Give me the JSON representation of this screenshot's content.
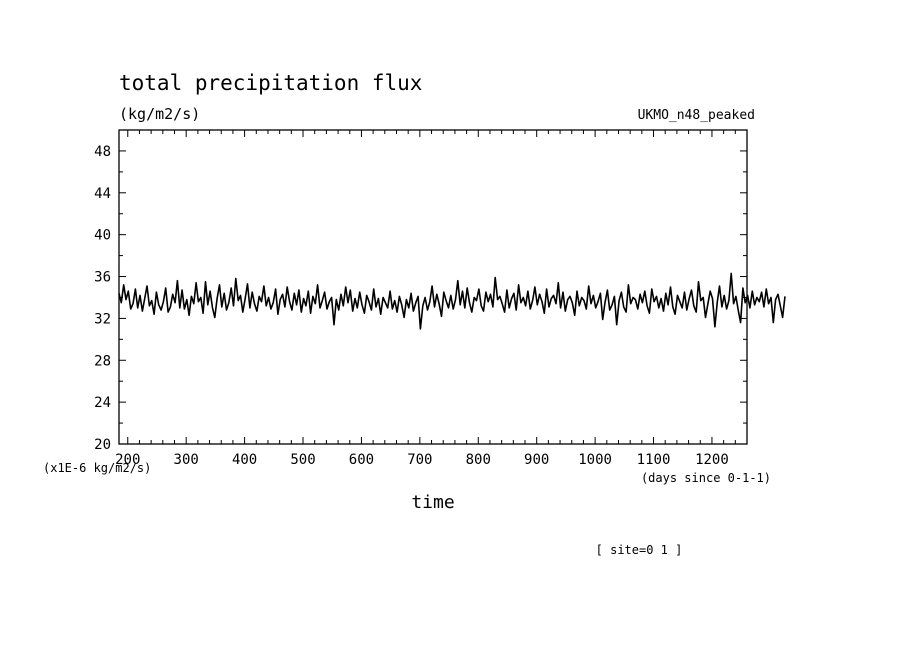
{
  "chart_data": {
    "type": "line",
    "title": "total precipitation flux",
    "units": "(kg/m2/s)",
    "model_label": "UKMO_n48_peaked",
    "xlabel": "time",
    "x_units": "(days since 0-1-1)",
    "y_scale_label": "(x1E-6 kg/m2/s)",
    "site_label": "[ site=0 1 ]",
    "xlim": [
      185,
      1260
    ],
    "ylim": [
      20,
      50
    ],
    "xticks": [
      200,
      300,
      400,
      500,
      600,
      700,
      800,
      900,
      1000,
      1100,
      1200
    ],
    "yticks": [
      20,
      24,
      28,
      32,
      36,
      40,
      44,
      48
    ],
    "grid": false,
    "series": [
      {
        "x_start": 185,
        "x_step": 4,
        "values": [
          34.4,
          33.5,
          35.2,
          33.8,
          34.6,
          32.9,
          33.4,
          34.8,
          33.0,
          34.2,
          32.7,
          33.9,
          35.1,
          33.2,
          33.7,
          32.4,
          34.5,
          33.3,
          32.8,
          33.6,
          34.9,
          32.6,
          33.1,
          34.3,
          33.5,
          35.6,
          33.0,
          34.7,
          32.9,
          33.8,
          32.3,
          34.1,
          33.4,
          35.4,
          33.6,
          34.0,
          32.5,
          35.5,
          33.3,
          34.6,
          33.0,
          32.1,
          33.9,
          35.2,
          33.1,
          34.4,
          32.8,
          33.5,
          34.9,
          33.2,
          35.8,
          33.7,
          34.2,
          32.6,
          33.9,
          35.3,
          33.0,
          34.5,
          33.4,
          32.7,
          34.1,
          33.6,
          35.1,
          33.2,
          34.0,
          32.9,
          33.5,
          34.8,
          32.4,
          33.8,
          34.3,
          33.1,
          35.0,
          33.6,
          32.8,
          34.4,
          33.3,
          34.7,
          32.6,
          33.9,
          33.2,
          34.6,
          32.5,
          34.1,
          33.4,
          35.2,
          33.0,
          33.7,
          34.5,
          32.9,
          33.6,
          34.0,
          31.4,
          33.8,
          32.8,
          34.3,
          33.2,
          35.0,
          33.5,
          34.7,
          32.7,
          33.9,
          33.0,
          34.5,
          33.3,
          32.5,
          34.2,
          33.6,
          32.8,
          34.8,
          33.1,
          33.9,
          32.4,
          34.0,
          33.5,
          33.0,
          34.6,
          32.9,
          33.7,
          32.6,
          34.1,
          33.3,
          32.1,
          33.8,
          33.0,
          34.4,
          32.7,
          33.5,
          34.1,
          31.0,
          33.2,
          34.0,
          32.8,
          33.6,
          35.1,
          33.1,
          34.3,
          33.4,
          32.2,
          34.5,
          33.7,
          33.0,
          34.2,
          32.9,
          33.8,
          35.6,
          33.3,
          34.6,
          33.0,
          34.9,
          33.5,
          32.6,
          34.0,
          33.7,
          34.8,
          33.2,
          32.7,
          34.5,
          33.6,
          34.3,
          33.1,
          35.9,
          33.8,
          34.1,
          33.4,
          32.6,
          34.7,
          33.0,
          33.9,
          34.4,
          32.8,
          35.2,
          33.5,
          34.0,
          33.2,
          34.6,
          32.9,
          33.7,
          35.0,
          33.3,
          34.3,
          33.6,
          32.5,
          34.8,
          33.1,
          33.9,
          34.2,
          33.4,
          35.4,
          33.0,
          34.5,
          32.7,
          33.8,
          34.1,
          33.5,
          32.3,
          34.6,
          33.2,
          34.0,
          33.7,
          32.9,
          35.1,
          33.4,
          34.2,
          33.0,
          33.6,
          34.4,
          31.9,
          33.5,
          34.7,
          32.8,
          33.3,
          34.1,
          31.4,
          33.7,
          34.5,
          33.1,
          32.6,
          35.2,
          33.4,
          34.0,
          33.8,
          32.9,
          34.3,
          33.5,
          34.6,
          33.2,
          32.5,
          34.8,
          33.6,
          34.1,
          33.0,
          33.9,
          32.7,
          34.4,
          33.3,
          35.0,
          33.1,
          32.4,
          34.2,
          33.6,
          33.0,
          34.5,
          32.8,
          33.9,
          34.7,
          33.2,
          32.6,
          35.5,
          33.7,
          34.0,
          32.1,
          33.4,
          34.6,
          33.9,
          31.2,
          33.5,
          35.1,
          33.1,
          34.2,
          32.9,
          33.7,
          36.3,
          33.4,
          34.1,
          32.8,
          31.6,
          34.9,
          33.5,
          34.2,
          33.0,
          34.6,
          33.3,
          34.0,
          33.6,
          34.5,
          33.1,
          34.8,
          33.4,
          34.0,
          31.6,
          33.8,
          34.3,
          33.2,
          32.1,
          34.1
        ]
      }
    ]
  }
}
